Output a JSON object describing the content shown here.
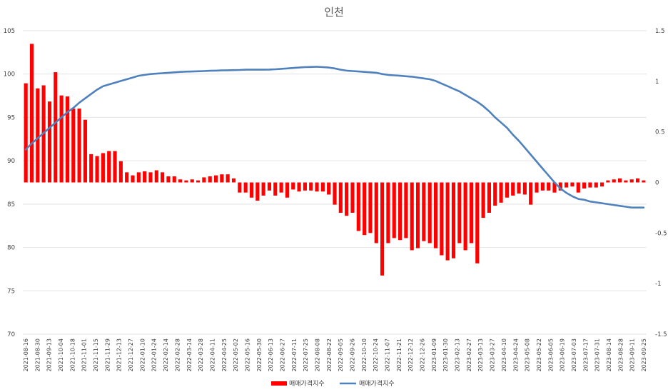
{
  "chart_data": {
    "type": "bar+line",
    "title": "인천",
    "xlabel": "",
    "ylabel_left": "",
    "ylabel_right": "",
    "y_left": {
      "min": 70,
      "max": 105,
      "ticks": [
        "70",
        "75",
        "80",
        "85",
        "90",
        "95",
        "100",
        "105"
      ]
    },
    "y_right": {
      "min": -1.5,
      "max": 1.5,
      "ticks": [
        "-1.5",
        "-1",
        "-0.5",
        "0",
        "0.5",
        "1",
        "1.5"
      ]
    },
    "grid": "horizontal",
    "legend_position": "bottom",
    "colors": {
      "bar": "#ff0000",
      "line": "#4f81bd",
      "title": "#595959"
    },
    "x_tick_labels": [
      "2021-08-16",
      "2021-08-30",
      "2021-09-13",
      "2021-10-04",
      "2021-10-18",
      "2021-11-01",
      "2021-11-15",
      "2021-11-29",
      "2021-12-13",
      "2021-12-27",
      "2022-01-10",
      "2022-01-24",
      "2022-02-14",
      "2022-02-28",
      "2022-03-14",
      "2022-03-28",
      "2022-04-11",
      "2022-04-25",
      "2022-05-02",
      "2022-05-16",
      "2022-05-30",
      "2022-06-13",
      "2022-06-27",
      "2022-07-11",
      "2022-07-25",
      "2022-08-08",
      "2022-08-22",
      "2022-09-05",
      "2022-09-26",
      "2022-10-10",
      "2022-10-24",
      "2022-11-07",
      "2022-11-21",
      "2022-12-12",
      "2022-12-26",
      "2023-01-09",
      "2023-01-30",
      "2023-02-13",
      "2023-02-27",
      "2023-03-13",
      "2023-03-27",
      "2023-04-10",
      "2023-04-24",
      "2023-05-08",
      "2023-05-22",
      "2023-06-05",
      "2023-06-19",
      "2023-07-03",
      "2023-07-17",
      "2023-07-31",
      "2023-08-14",
      "2023-08-28",
      "2023-09-11",
      "2023-09-25"
    ],
    "series": [
      {
        "name": "매매가격지수",
        "type": "bar",
        "axis": "right",
        "values": [
          0.98,
          1.37,
          0.93,
          0.96,
          0.8,
          1.09,
          0.86,
          0.85,
          0.73,
          0.73,
          0.62,
          0.28,
          0.26,
          0.29,
          0.31,
          0.31,
          0.21,
          0.1,
          0.07,
          0.1,
          0.11,
          0.1,
          0.12,
          0.1,
          0.06,
          0.06,
          0.03,
          0.02,
          0.03,
          0.02,
          0.05,
          0.06,
          0.07,
          0.08,
          0.08,
          0.04,
          -0.1,
          -0.1,
          -0.15,
          -0.18,
          -0.13,
          -0.08,
          -0.13,
          -0.1,
          -0.15,
          -0.07,
          -0.09,
          -0.08,
          -0.08,
          -0.09,
          -0.09,
          -0.12,
          -0.22,
          -0.3,
          -0.33,
          -0.3,
          -0.48,
          -0.52,
          -0.5,
          -0.6,
          -0.92,
          -0.6,
          -0.55,
          -0.57,
          -0.55,
          -0.67,
          -0.65,
          -0.58,
          -0.6,
          -0.65,
          -0.72,
          -0.77,
          -0.75,
          -0.6,
          -0.67,
          -0.6,
          -0.8,
          -0.35,
          -0.3,
          -0.23,
          -0.2,
          -0.15,
          -0.13,
          -0.11,
          -0.12,
          -0.22,
          -0.1,
          -0.08,
          -0.08,
          -0.1,
          -0.08,
          -0.05,
          -0.04,
          -0.1,
          -0.06,
          -0.05,
          -0.05,
          -0.04,
          0.02,
          0.03,
          0.04,
          0.02,
          0.03,
          0.04,
          0.02
        ]
      },
      {
        "name": "매매가격지수",
        "type": "line",
        "axis": "left",
        "values": [
          91.3,
          92.0,
          92.6,
          93.2,
          93.8,
          94.4,
          95.0,
          95.6,
          96.1,
          96.7,
          97.2,
          97.7,
          98.2,
          98.6,
          98.8,
          99.0,
          99.2,
          99.4,
          99.6,
          99.8,
          99.9,
          100.0,
          100.05,
          100.1,
          100.15,
          100.2,
          100.25,
          100.28,
          100.3,
          100.32,
          100.35,
          100.38,
          100.4,
          100.42,
          100.44,
          100.45,
          100.47,
          100.5,
          100.5,
          100.5,
          100.5,
          100.52,
          100.55,
          100.6,
          100.65,
          100.7,
          100.75,
          100.8,
          100.82,
          100.84,
          100.8,
          100.75,
          100.65,
          100.5,
          100.4,
          100.35,
          100.3,
          100.25,
          100.2,
          100.15,
          100.0,
          99.9,
          99.85,
          99.8,
          99.75,
          99.7,
          99.6,
          99.5,
          99.4,
          99.2,
          98.9,
          98.6,
          98.3,
          98.0,
          97.6,
          97.2,
          96.8,
          96.3,
          95.7,
          95.0,
          94.4,
          93.8,
          93.0,
          92.3,
          91.5,
          90.7,
          89.9,
          89.1,
          88.3,
          87.5,
          86.8,
          86.3,
          85.9,
          85.6,
          85.5,
          85.3,
          85.2,
          85.1,
          85.0,
          84.9,
          84.8,
          84.7,
          84.6,
          84.6,
          84.6
        ]
      }
    ]
  }
}
